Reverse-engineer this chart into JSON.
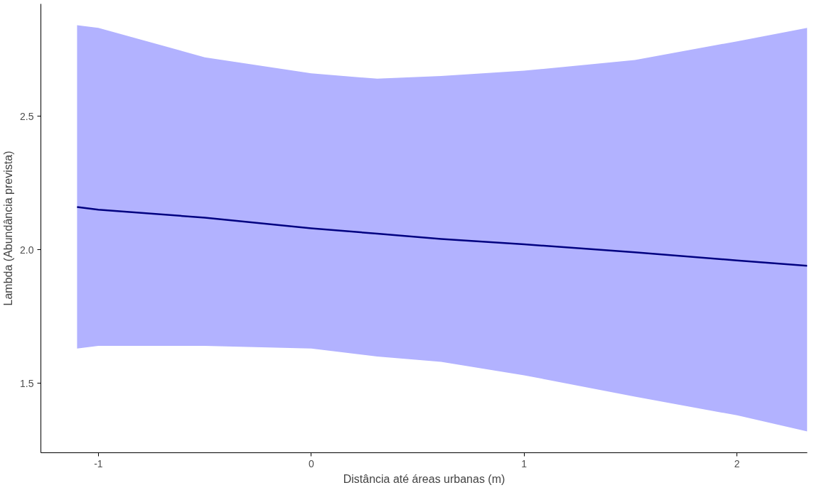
{
  "chart_data": {
    "type": "line",
    "xlabel": "Distância até áreas urbanas (m)",
    "ylabel": "Lambda (Abundância prevista)",
    "x": [
      -1.1,
      -1.0,
      -0.5,
      0.0,
      0.31,
      0.61,
      1.0,
      1.52,
      2.0,
      2.33
    ],
    "series": [
      {
        "color": "#000080",
        "values": [
          2.16,
          2.15,
          2.12,
          2.08,
          2.06,
          2.04,
          2.02,
          1.99,
          1.96,
          1.94
        ],
        "lower": [
          1.63,
          1.64,
          1.64,
          1.63,
          1.6,
          1.58,
          1.53,
          1.45,
          1.38,
          1.32
        ],
        "upper": [
          2.84,
          2.83,
          2.72,
          2.66,
          2.64,
          2.65,
          2.67,
          2.71,
          2.78,
          2.83
        ]
      }
    ],
    "xlim": [
      -1.27,
      2.33
    ],
    "ylim": [
      1.24,
      2.92
    ],
    "xticks": [
      -1,
      0,
      1,
      2
    ],
    "yticks": [
      {
        "value": 1.5,
        "label": "1.5"
      },
      {
        "value": 2.0,
        "label": "2.0"
      },
      {
        "value": 2.5,
        "label": "2.5"
      }
    ],
    "grid": false,
    "marker": "none",
    "line_style": "solid"
  }
}
